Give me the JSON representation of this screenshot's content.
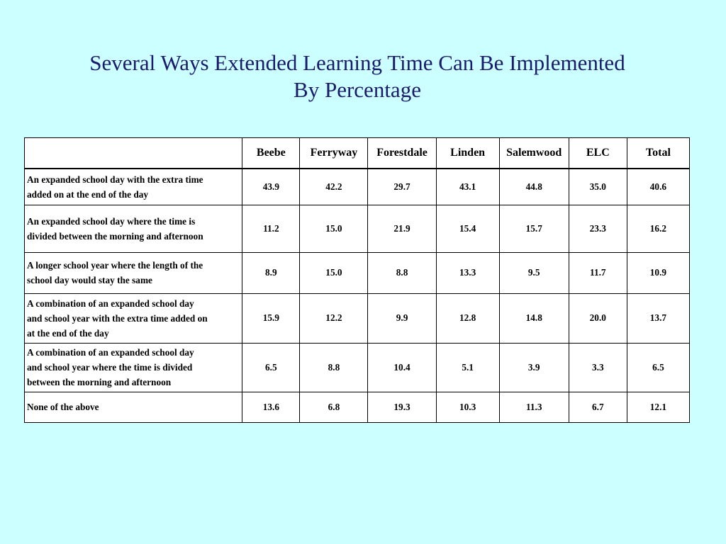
{
  "title": {
    "line1": "Several Ways Extended Learning Time Can Be Implemented",
    "line2": "By Percentage"
  },
  "table": {
    "corner": "",
    "columns": [
      "Beebe",
      "Ferryway",
      "Forestdale",
      "Linden",
      "Salemwood",
      "ELC",
      "Total"
    ],
    "rows": [
      {
        "label_lines": [
          "An expanded school day with the extra time",
          "added on at the end of the day"
        ],
        "values": [
          "43.9",
          "42.2",
          "29.7",
          "43.1",
          "44.8",
          "35.0",
          "40.6"
        ]
      },
      {
        "label_lines": [
          "An expanded school day where the time is",
          "divided between the morning and afternoon"
        ],
        "values": [
          "11.2",
          "15.0",
          "21.9",
          "15.4",
          "15.7",
          "23.3",
          "16.2"
        ]
      },
      {
        "label_lines": [
          "A longer school year where the length of the",
          "school day would stay the same"
        ],
        "values": [
          "8.9",
          "15.0",
          "8.8",
          "13.3",
          "9.5",
          "11.7",
          "10.9"
        ]
      },
      {
        "label_lines": [
          "A combination of an expanded school day",
          "and school year with the extra time added on",
          "at the end of the day"
        ],
        "values": [
          "15.9",
          "12.2",
          "9.9",
          "12.8",
          "14.8",
          "20.0",
          "13.7"
        ]
      },
      {
        "label_lines": [
          "A combination of an expanded school day",
          "and school year where the time is divided",
          "between the morning and afternoon"
        ],
        "values": [
          "6.5",
          "8.8",
          "10.4",
          "5.1",
          "3.9",
          "3.3",
          "6.5"
        ]
      },
      {
        "label_lines": [
          "None of the above"
        ],
        "values": [
          "13.6",
          "6.8",
          "19.3",
          "10.3",
          "11.3",
          "6.7",
          "12.1"
        ]
      }
    ]
  }
}
